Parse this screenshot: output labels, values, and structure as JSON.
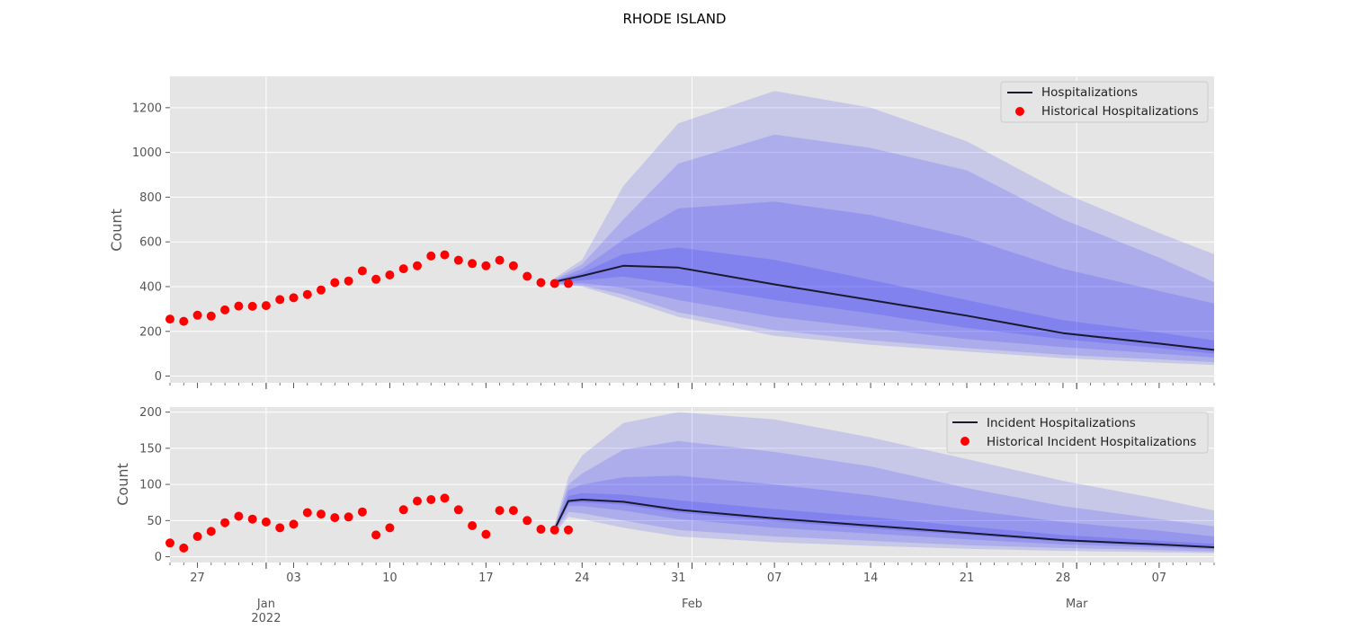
{
  "figure": {
    "title": "RHODE ISLAND"
  },
  "colors": {
    "panel_bg": "#e5e5e5",
    "grid": "#ffffff",
    "band": "#0000ff",
    "median_line": "#1a1a2e",
    "historical_points": "#ff0000"
  },
  "x_axis": {
    "range": [
      "2021-12-25",
      "2022-03-11"
    ],
    "major_ticks": [
      {
        "date": "2022-01-01",
        "label": "Jan",
        "sublabel": "2022"
      },
      {
        "date": "2022-02-01",
        "label": "Feb",
        "sublabel": ""
      },
      {
        "date": "2022-03-01",
        "label": "Mar",
        "sublabel": ""
      }
    ],
    "minor_ticks": [
      {
        "date": "2021-12-27",
        "label": "27"
      },
      {
        "date": "2022-01-03",
        "label": "03"
      },
      {
        "date": "2022-01-10",
        "label": "10"
      },
      {
        "date": "2022-01-17",
        "label": "17"
      },
      {
        "date": "2022-01-24",
        "label": "24"
      },
      {
        "date": "2022-01-31",
        "label": "31"
      },
      {
        "date": "2022-02-07",
        "label": "07"
      },
      {
        "date": "2022-02-14",
        "label": "14"
      },
      {
        "date": "2022-02-21",
        "label": "21"
      },
      {
        "date": "2022-02-28",
        "label": "28"
      },
      {
        "date": "2022-03-07",
        "label": "07"
      }
    ]
  },
  "chart_data": [
    {
      "type": "area",
      "name": "hospitalizations",
      "ylabel": "Count",
      "ylim": [
        -30,
        1340
      ],
      "yticks": [
        0,
        200,
        400,
        600,
        800,
        1000,
        1200
      ],
      "legend": {
        "position": "top-right",
        "entries": [
          {
            "label": "Hospitalizations",
            "kind": "line"
          },
          {
            "label": "Historical Hospitalizations",
            "kind": "marker"
          }
        ]
      },
      "historical": {
        "name": "Historical Hospitalizations",
        "start": "2021-12-25",
        "values": [
          255,
          245,
          272,
          268,
          296,
          313,
          312,
          315,
          342,
          350,
          365,
          385,
          418,
          425,
          470,
          433,
          452,
          480,
          493,
          537,
          542,
          518,
          503,
          493,
          518,
          493,
          446,
          418,
          414,
          414
        ]
      },
      "forecast": {
        "name": "Hospitalizations",
        "x": [
          "2022-01-22",
          "2022-01-24",
          "2022-01-27",
          "2022-01-31",
          "2022-02-07",
          "2022-02-14",
          "2022-02-21",
          "2022-02-28",
          "2022-03-07",
          "2022-03-11"
        ],
        "median": [
          422,
          448,
          493,
          485,
          410,
          340,
          270,
          192,
          145,
          117
        ],
        "bands": [
          {
            "lower": [
              410,
              400,
              345,
              265,
              180,
              140,
              110,
              80,
              60,
              50
            ],
            "upper": [
              438,
              520,
              850,
              1130,
              1275,
              1200,
              1050,
              820,
              640,
              545
            ]
          },
          {
            "lower": [
              412,
              405,
              365,
              285,
              205,
              160,
              125,
              95,
              75,
              62
            ],
            "upper": [
              432,
              500,
              700,
              950,
              1080,
              1020,
              920,
              700,
              530,
              420
            ]
          },
          {
            "lower": [
              414,
              415,
              395,
              340,
              265,
              215,
              165,
              130,
              100,
              83
            ],
            "upper": [
              428,
              480,
              610,
              750,
              780,
              720,
              620,
              480,
              380,
              325
            ]
          },
          {
            "lower": [
              418,
              428,
              445,
              410,
              340,
              280,
              215,
              165,
              125,
              100
            ],
            "upper": [
              425,
              462,
              545,
              575,
              520,
              430,
              340,
              250,
              195,
              160
            ]
          }
        ]
      }
    },
    {
      "type": "area",
      "name": "incident_hospitalizations",
      "ylabel": "Count",
      "ylim": [
        -8,
        207
      ],
      "yticks": [
        0,
        50,
        100,
        150,
        200
      ],
      "legend": {
        "position": "top-right",
        "entries": [
          {
            "label": "Incident Hospitalizations",
            "kind": "line"
          },
          {
            "label": "Historical Incident Hospitalizations",
            "kind": "marker"
          }
        ]
      },
      "historical": {
        "name": "Historical Incident Hospitalizations",
        "start": "2021-12-25",
        "values": [
          19,
          12,
          28,
          35,
          47,
          56,
          52,
          48,
          40,
          45,
          61,
          59,
          54,
          55,
          62,
          30,
          40,
          65,
          77,
          79,
          81,
          65,
          43,
          31,
          64,
          64,
          50,
          38,
          37,
          37
        ]
      },
      "forecast": {
        "name": "Incident Hospitalizations",
        "x": [
          "2022-01-22",
          "2022-01-23",
          "2022-01-24",
          "2022-01-27",
          "2022-01-31",
          "2022-02-07",
          "2022-02-14",
          "2022-02-21",
          "2022-02-28",
          "2022-03-07",
          "2022-03-11"
        ],
        "median": [
          38,
          77,
          79,
          76,
          65,
          53,
          43,
          33,
          23,
          17,
          13
        ],
        "bands": [
          {
            "lower": [
              32,
              55,
              52,
              40,
              28,
              20,
              15,
              11,
              8,
              6,
              5
            ],
            "upper": [
              44,
              110,
              140,
              185,
              200,
              190,
              165,
              135,
              105,
              80,
              64
            ]
          },
          {
            "lower": [
              34,
              62,
              60,
              50,
              37,
              28,
              22,
              16,
              12,
              9,
              7
            ],
            "upper": [
              42,
              100,
              115,
              148,
              160,
              145,
              125,
              95,
              70,
              52,
              42
            ]
          },
          {
            "lower": [
              36,
              70,
              70,
              64,
              52,
              40,
              32,
              24,
              17,
              13,
              10
            ],
            "upper": [
              40,
              92,
              100,
              110,
              112,
              100,
              85,
              65,
              48,
              36,
              28
            ]
          },
          {
            "lower": [
              37,
              74,
              75,
              72,
              61,
              49,
              39,
              30,
              21,
              15,
              12
            ],
            "upper": [
              39,
              84,
              88,
              86,
              78,
              66,
              55,
              42,
              30,
              22,
              18
            ]
          }
        ]
      }
    }
  ]
}
